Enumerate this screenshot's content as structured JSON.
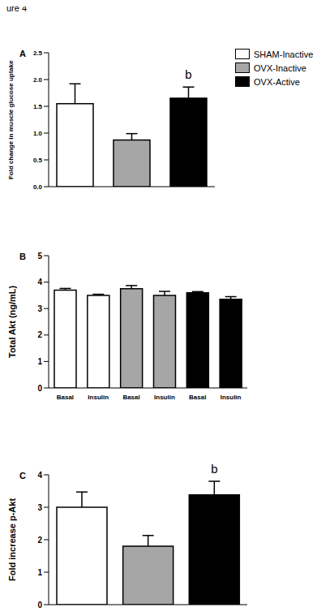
{
  "title": "ure 4",
  "chart_data": [
    {
      "type": "bar",
      "title": "A",
      "y_label": "Fold change in muscle glucose uptake",
      "categories": [
        null
      ],
      "series": [
        {
          "name": "SHAM-Inactive",
          "color": "#ffffff",
          "values": [
            1.55
          ],
          "errors": [
            0.37
          ]
        },
        {
          "name": "OVX-Inactive",
          "color": "#a6a6a6",
          "values": [
            0.87
          ],
          "errors": [
            0.12
          ]
        },
        {
          "name": "OVX-Active",
          "color": "#000000",
          "values": [
            1.65
          ],
          "errors": [
            0.21
          ],
          "annotations": [
            "b"
          ]
        }
      ],
      "ylim": [
        0,
        2.5
      ],
      "yticks": [
        {
          "value": 0,
          "label": "0.0"
        },
        0.5,
        {
          "value": 1,
          "label": "1.0"
        },
        1.5,
        {
          "value": 2,
          "label": "2.0"
        },
        2.5
      ],
      "legend": "right"
    },
    {
      "type": "bar",
      "title": "B",
      "y_label": "Total Akt (ng/mL)",
      "categories": [
        "Basal",
        "Insulin",
        "Basal",
        "Insulin",
        "Basal",
        "Insulin"
      ],
      "values": [
        3.7,
        3.5,
        3.75,
        3.5,
        3.6,
        3.35
      ],
      "errors": [
        0.06,
        0.04,
        0.12,
        0.15,
        0.04,
        0.1
      ],
      "colors": [
        "#ffffff",
        "#ffffff",
        "#a6a6a6",
        "#a6a6a6",
        "#000000",
        "#000000"
      ],
      "ylim": [
        0,
        5
      ],
      "yticks": [
        0,
        1,
        2,
        3,
        4,
        5
      ]
    },
    {
      "type": "bar",
      "title": "C",
      "y_label": "Fold increase p-Akt",
      "categories": [
        null,
        null,
        null
      ],
      "values": [
        3.0,
        1.8,
        3.38
      ],
      "errors": [
        0.47,
        0.33,
        0.42
      ],
      "annotations": [
        null,
        null,
        "b"
      ],
      "colors": [
        "#ffffff",
        "#a6a6a6",
        "#000000"
      ],
      "ylim": [
        0,
        4
      ],
      "yticks": [
        0,
        1,
        2,
        3,
        4
      ]
    }
  ]
}
